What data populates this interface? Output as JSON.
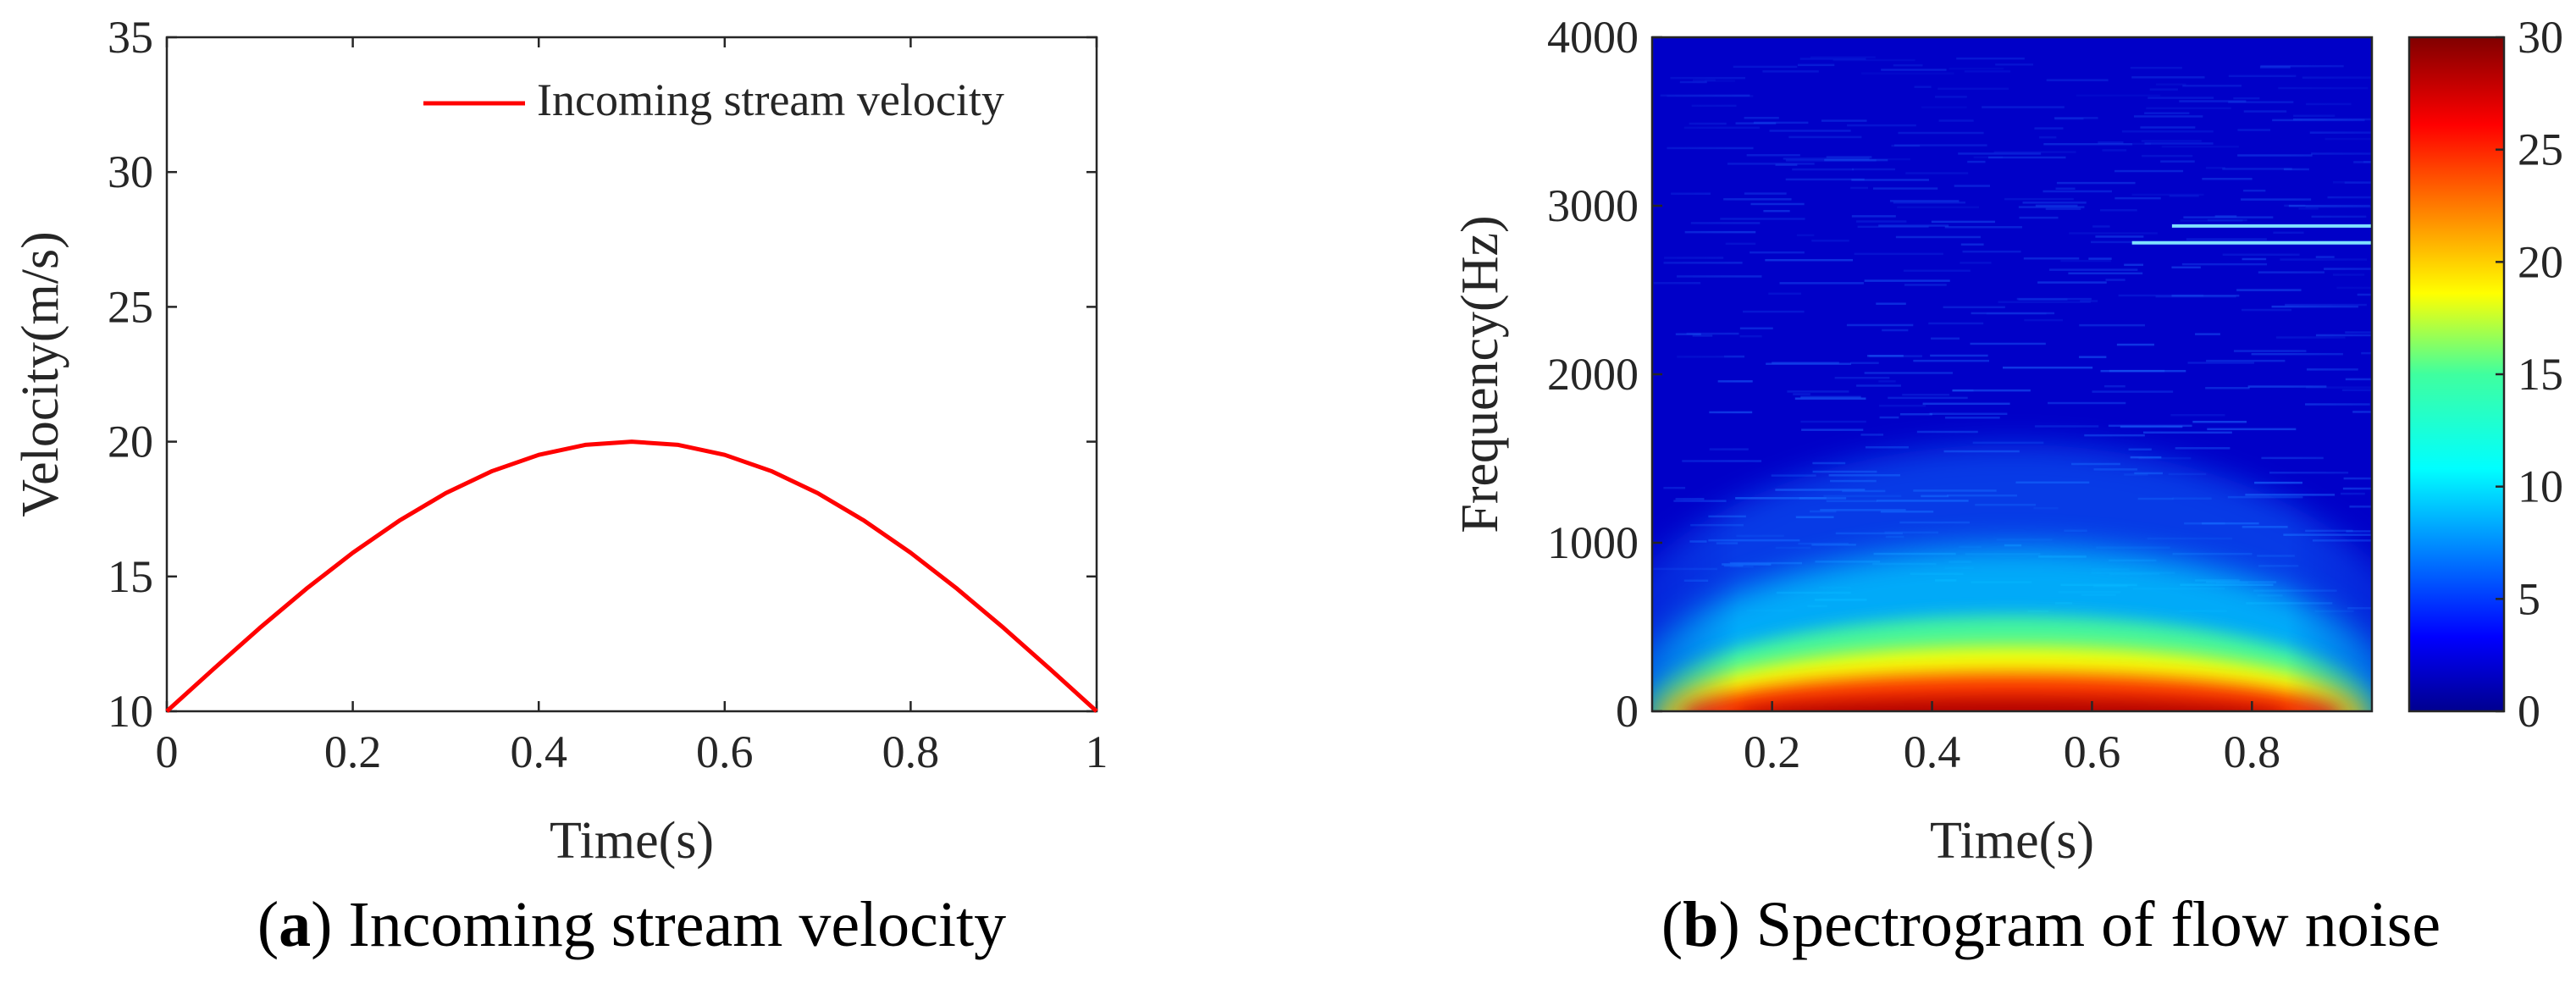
{
  "chart_data": [
    {
      "type": "line",
      "panel": "a",
      "title": "",
      "xlabel": "Time(s)",
      "ylabel": "Velocity(m/s)",
      "xlim": [
        0,
        1
      ],
      "ylim": [
        10,
        35
      ],
      "xticks": [
        0,
        0.2,
        0.4,
        0.6,
        0.8,
        1
      ],
      "xtick_labels": [
        "0",
        "0.2",
        "0.4",
        "0.6",
        "0.8",
        "1"
      ],
      "yticks": [
        10,
        15,
        20,
        25,
        30,
        35
      ],
      "ytick_labels": [
        "10",
        "15",
        "20",
        "25",
        "30",
        "35"
      ],
      "legend_position": "top-right",
      "series": [
        {
          "name": "Incoming stream velocity",
          "color": "#ff0000",
          "x": [
            0,
            0.05,
            0.1,
            0.15,
            0.2,
            0.25,
            0.3,
            0.35,
            0.4,
            0.45,
            0.5,
            0.55,
            0.6,
            0.65,
            0.7,
            0.75,
            0.8,
            0.85,
            0.9,
            0.95,
            1
          ],
          "y": [
            10,
            11.56,
            13.09,
            14.54,
            15.88,
            17.07,
            18.09,
            18.91,
            19.51,
            19.88,
            20,
            19.88,
            19.51,
            18.91,
            18.09,
            17.07,
            15.88,
            14.54,
            13.09,
            11.56,
            10
          ]
        }
      ],
      "caption_label": "a",
      "caption_text": "Incoming stream velocity"
    },
    {
      "type": "heatmap",
      "panel": "b",
      "title": "",
      "xlabel": "Time(s)",
      "ylabel": "Frequency(Hz)",
      "xlim": [
        0.05,
        0.95
      ],
      "ylim": [
        0,
        4000
      ],
      "xticks": [
        0.2,
        0.4,
        0.6,
        0.8
      ],
      "xtick_labels": [
        "0.2",
        "0.4",
        "0.6",
        "0.8"
      ],
      "yticks": [
        0,
        1000,
        2000,
        3000,
        4000
      ],
      "ytick_labels": [
        "0",
        "1000",
        "2000",
        "3000",
        "4000"
      ],
      "colorbar": {
        "range": [
          0,
          30
        ],
        "ticks": [
          0,
          5,
          10,
          15,
          20,
          25,
          30
        ],
        "tick_labels": [
          "0",
          "5",
          "10",
          "15",
          "20",
          "25",
          "30"
        ],
        "colormap": "jet"
      },
      "features": [
        {
          "description": "high-intensity band near 0 Hz",
          "peak_value": 30,
          "time_of_peak": 0.5
        },
        {
          "description": "narrow tonal line",
          "frequency": 2780,
          "time_start": 0.65,
          "time_end": 0.95
        },
        {
          "description": "narrow tonal line",
          "frequency": 2880,
          "time_start": 0.7,
          "time_end": 0.95
        }
      ],
      "caption_label": "b",
      "caption_text": "Spectrogram of flow noise"
    }
  ]
}
